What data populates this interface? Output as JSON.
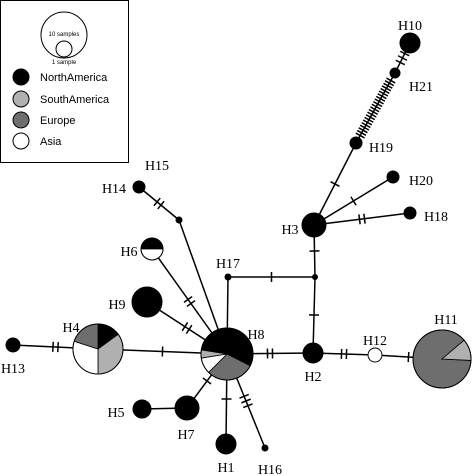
{
  "legend": {
    "scale": {
      "large": "10 samples",
      "small": "1 sample"
    },
    "items": [
      "NorthAmerica",
      "SouthAmerica",
      "Europe",
      "Asia"
    ]
  },
  "nodes": [
    "H1",
    "H2",
    "H3",
    "H4",
    "H5",
    "H6",
    "H7",
    "H8",
    "H9",
    "H10",
    "H11",
    "H12",
    "H13",
    "H14",
    "H15",
    "H16",
    "H17",
    "H18",
    "H19",
    "H20",
    "H21"
  ]
}
